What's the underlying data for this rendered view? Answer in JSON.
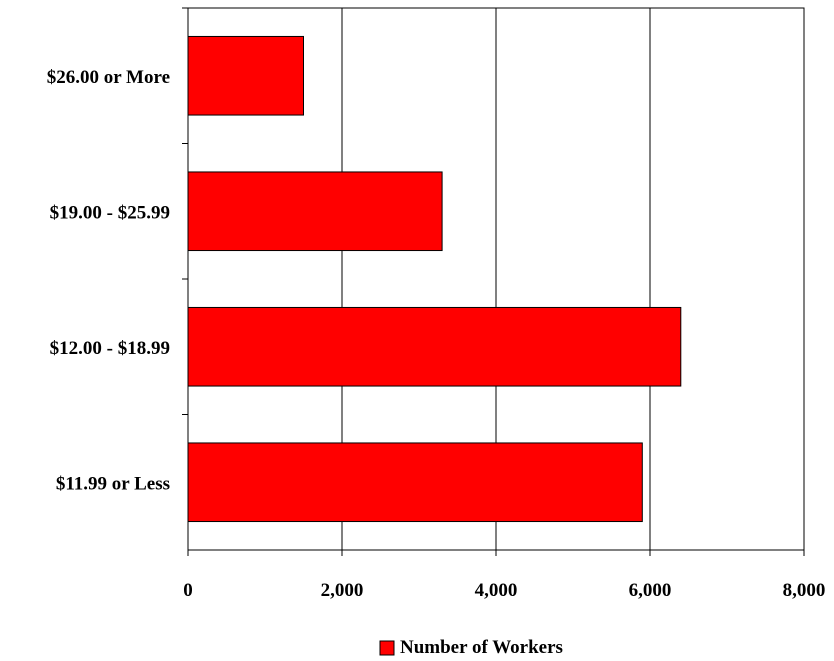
{
  "chart_data": {
    "type": "bar",
    "orientation": "horizontal",
    "categories": [
      "$11.99 or Less",
      "$12.00 - $18.99",
      "$19.00 - $25.99",
      "$26.00 or More"
    ],
    "series": [
      {
        "name": "Number of Workers",
        "values": [
          5900,
          6400,
          3300,
          1500
        ]
      }
    ],
    "xlim": [
      0,
      8000
    ],
    "xticks": [
      0,
      2000,
      4000,
      6000,
      8000
    ],
    "xtick_labels": [
      "0",
      "2,000",
      "4,000",
      "6,000",
      "8,000"
    ],
    "grid": "vertical",
    "legend": "bottom",
    "colors": {
      "bar": "#ff0000",
      "bar_edge": "#000000"
    }
  }
}
